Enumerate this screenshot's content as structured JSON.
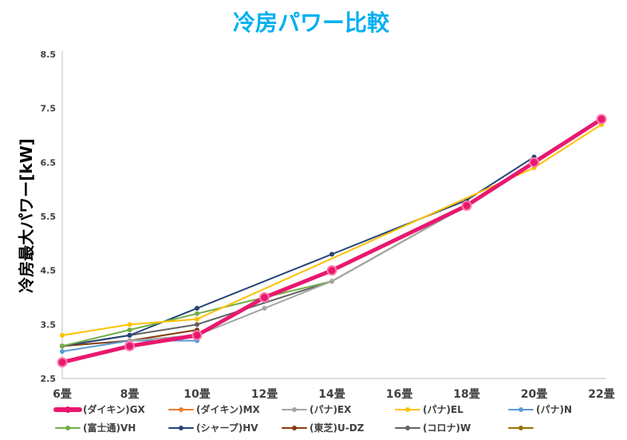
{
  "chart_data": {
    "type": "line",
    "title": "冷房パワー比較",
    "ylabel": "冷房最大パワー[kW]",
    "xlabel": "",
    "x": [
      "6畳",
      "8畳",
      "10畳",
      "12畳",
      "14畳",
      "16畳",
      "18畳",
      "20畳",
      "22畳"
    ],
    "y_ticks": [
      "2.5",
      "3.5",
      "4.5",
      "5.5",
      "6.5",
      "7.5",
      "8.5"
    ],
    "ylim": [
      2.5,
      8.5
    ],
    "grid": false,
    "legend_position": "bottom",
    "series": [
      {
        "name": "(ダイキン)GX",
        "color": "#e8186f",
        "emphasis": true,
        "values": [
          2.8,
          3.1,
          3.3,
          4.0,
          4.5,
          null,
          5.7,
          6.5,
          7.3
        ]
      },
      {
        "name": "(ダイキン)MX",
        "color": "#ed7d31",
        "values": [
          2.8,
          3.1,
          3.3,
          4.0,
          4.5,
          null,
          5.7,
          6.5,
          7.3
        ]
      },
      {
        "name": "(パナ)EX",
        "color": "#a5a5a5",
        "values": [
          null,
          3.2,
          3.3,
          3.8,
          4.3,
          null,
          5.7,
          6.5,
          null
        ]
      },
      {
        "name": "(パナ)EL",
        "color": "#ffc000",
        "values": [
          3.3,
          3.5,
          3.6,
          null,
          null,
          null,
          null,
          6.4,
          7.2
        ]
      },
      {
        "name": "(パナ)N",
        "color": "#5b9bd5",
        "values": [
          3.0,
          3.2,
          3.2,
          null,
          null,
          null,
          null,
          null,
          null
        ]
      },
      {
        "name": "(富士通)VH",
        "color": "#70ad47",
        "values": [
          3.1,
          3.4,
          3.7,
          4.0,
          4.3,
          null,
          5.7,
          6.5,
          7.3
        ]
      },
      {
        "name": "(シャープ)HV",
        "color": "#264478",
        "values": [
          3.1,
          3.3,
          3.8,
          null,
          4.8,
          null,
          5.8,
          6.6,
          null
        ]
      },
      {
        "name": "(東芝)U-DZ",
        "color": "#843c0c",
        "values": [
          3.1,
          3.2,
          3.4,
          null,
          null,
          null,
          null,
          null,
          null
        ]
      },
      {
        "name": "(コロナ)W",
        "color": "#636363",
        "values": [
          3.1,
          3.3,
          3.5,
          null,
          4.3,
          null,
          5.7,
          null,
          null
        ]
      },
      {
        "name": "",
        "color": "#997300",
        "values": [
          null,
          null,
          null,
          null,
          null,
          null,
          null,
          null,
          null
        ]
      }
    ]
  }
}
